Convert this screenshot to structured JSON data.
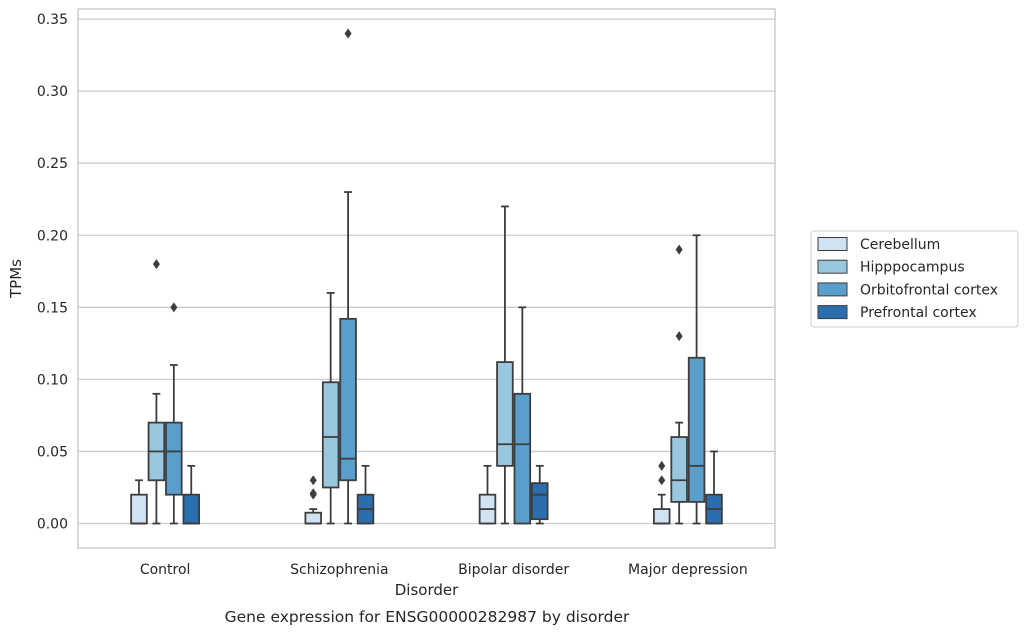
{
  "chart_data": {
    "type": "box",
    "caption": "Gene expression for ENSG00000282987 by disorder",
    "xlabel": "Disorder",
    "ylabel": "TPMs",
    "ylim": [
      -0.017,
      0.357
    ],
    "yticks": [
      "0.00",
      "0.05",
      "0.10",
      "0.15",
      "0.20",
      "0.25",
      "0.30",
      "0.35"
    ],
    "grid": "horizontal",
    "legend_position": "right",
    "categories": [
      "Control",
      "Schizophrenia",
      "Bipolar disorder",
      "Major depression"
    ],
    "series": [
      {
        "name": "Cerebellum",
        "color": "#d1e2f2",
        "boxes": [
          {
            "whislo": 0.0,
            "q1": 0.0,
            "med": 0.0,
            "q3": 0.02,
            "whishi": 0.03,
            "fliers": []
          },
          {
            "whislo": 0.0,
            "q1": 0.0,
            "med": 0.0,
            "q3": 0.0075,
            "whishi": 0.01,
            "fliers": [
              0.02,
              0.021,
              0.03
            ]
          },
          {
            "whislo": 0.0,
            "q1": 0.0,
            "med": 0.01,
            "q3": 0.02,
            "whishi": 0.04,
            "fliers": []
          },
          {
            "whislo": 0.0,
            "q1": 0.0,
            "med": 0.0,
            "q3": 0.01,
            "whishi": 0.02,
            "fliers": [
              0.03,
              0.04
            ]
          }
        ]
      },
      {
        "name": "Hipppocampus",
        "color": "#9ac7e0",
        "boxes": [
          {
            "whislo": 0.0,
            "q1": 0.03,
            "med": 0.05,
            "q3": 0.07,
            "whishi": 0.09,
            "fliers": [
              0.18
            ]
          },
          {
            "whislo": 0.0,
            "q1": 0.025,
            "med": 0.06,
            "q3": 0.098,
            "whishi": 0.16,
            "fliers": []
          },
          {
            "whislo": 0.0,
            "q1": 0.04,
            "med": 0.055,
            "q3": 0.112,
            "whishi": 0.22,
            "fliers": []
          },
          {
            "whislo": 0.0,
            "q1": 0.015,
            "med": 0.03,
            "q3": 0.06,
            "whishi": 0.07,
            "fliers": [
              0.13,
              0.19
            ]
          }
        ]
      },
      {
        "name": "Orbitofrontal cortex",
        "color": "#5a9fcb",
        "boxes": [
          {
            "whislo": 0.0,
            "q1": 0.02,
            "med": 0.05,
            "q3": 0.07,
            "whishi": 0.11,
            "fliers": [
              0.15
            ]
          },
          {
            "whislo": 0.0,
            "q1": 0.03,
            "med": 0.045,
            "q3": 0.142,
            "whishi": 0.23,
            "fliers": [
              0.34
            ]
          },
          {
            "whislo": 0.0,
            "q1": 0.0,
            "med": 0.055,
            "q3": 0.09,
            "whishi": 0.15,
            "fliers": []
          },
          {
            "whislo": 0.0,
            "q1": 0.015,
            "med": 0.04,
            "q3": 0.115,
            "whishi": 0.2,
            "fliers": []
          }
        ]
      },
      {
        "name": "Prefrontal cortex",
        "color": "#2b6ead",
        "boxes": [
          {
            "whislo": 0.0,
            "q1": 0.0,
            "med": 0.0,
            "q3": 0.02,
            "whishi": 0.04,
            "fliers": []
          },
          {
            "whislo": 0.0,
            "q1": 0.0,
            "med": 0.01,
            "q3": 0.02,
            "whishi": 0.04,
            "fliers": []
          },
          {
            "whislo": 0.0,
            "q1": 0.003,
            "med": 0.02,
            "q3": 0.028,
            "whishi": 0.04,
            "fliers": []
          },
          {
            "whislo": 0.0,
            "q1": 0.0,
            "med": 0.01,
            "q3": 0.02,
            "whishi": 0.05,
            "fliers": []
          }
        ]
      }
    ]
  }
}
